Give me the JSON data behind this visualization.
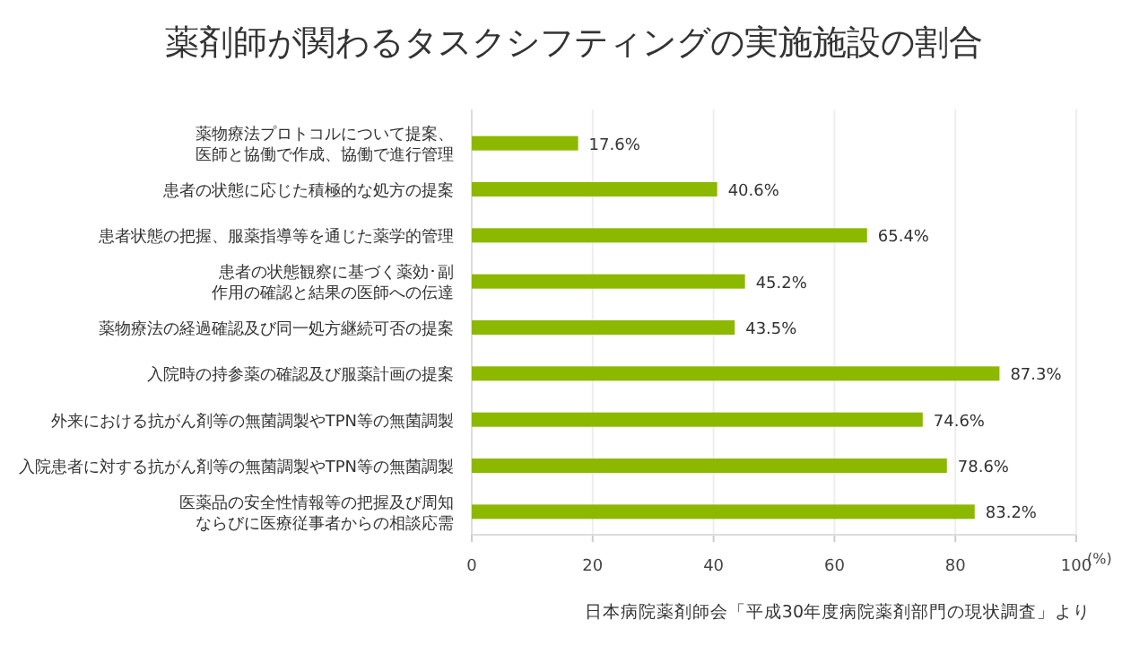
{
  "chart_data": {
    "type": "bar",
    "orientation": "horizontal",
    "title": "薬剤師が関わるタスクシフティングの実施施設の割合",
    "categories": [
      "薬物療法プロトコルについて提案、医師と協働で作成、協働で進行管理",
      "患者の状態に応じた積極的な処方の提案",
      "患者状態の把握、服薬指導等を通じた薬学的管理",
      "患者の状態観察に基づく薬効･副作用の確認と結果の医師への伝達",
      "薬物療法の経過確認及び同一処方継続可否の提案",
      "入院時の持参薬の確認及び服薬計画の提案",
      "外来における抗がん剤等の無菌調製やTPN等の無菌調製",
      "入院患者に対する抗がん剤等の無菌調製やTPN等の無菌調製",
      "医薬品の安全性情報等の把握及び周知ならびに医療従事者からの相談応需"
    ],
    "values": [
      17.6,
      40.6,
      65.4,
      45.2,
      43.5,
      87.3,
      74.6,
      78.6,
      83.2
    ],
    "value_labels": [
      "17.6%",
      "40.6%",
      "65.4%",
      "45.2%",
      "43.5%",
      "87.3%",
      "74.6%",
      "78.6%",
      "83.2%"
    ],
    "color": "#8cb800",
    "xlabel": "(%)",
    "xlim": [
      0,
      100
    ],
    "xticks": [
      0,
      20,
      40,
      60,
      80,
      100
    ],
    "grid": "x",
    "annotations": [
      "日本病院薬剤師会「平成30年度病院薬剤部門の現状調査」より"
    ]
  }
}
